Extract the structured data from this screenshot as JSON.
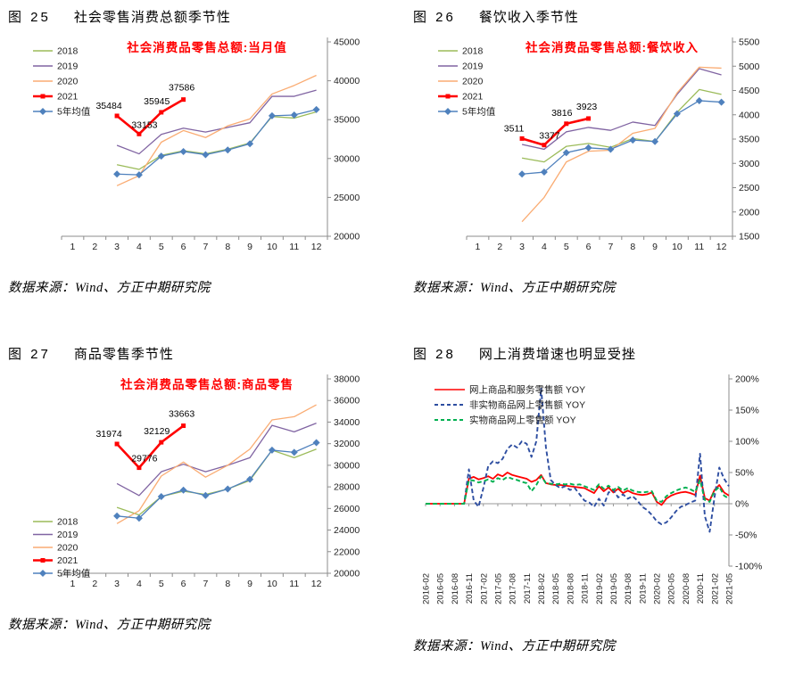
{
  "chart_data": [
    {
      "type": "line",
      "figure_label": "图 25",
      "title": "社会零售消费总额季节性",
      "inner_title": "社会消费品零售总额:当月值",
      "title_color": "#FF0000",
      "source": "数据来源：Wind、方正中期研究院",
      "x": [
        "1",
        "2",
        "3",
        "4",
        "5",
        "6",
        "7",
        "8",
        "9",
        "10",
        "11",
        "12"
      ],
      "ylim": [
        20000,
        45000
      ],
      "ytick_step": 5000,
      "legend_position": "top-left",
      "series": [
        {
          "name": "2018",
          "color": "#9BBB59",
          "values": [
            null,
            null,
            29200,
            28600,
            30400,
            31000,
            30600,
            31200,
            32000,
            35400,
            35200,
            36000
          ]
        },
        {
          "name": "2019",
          "color": "#8064A2",
          "values": [
            null,
            null,
            31700,
            30600,
            33100,
            33900,
            33400,
            34000,
            34600,
            38000,
            38000,
            38800
          ]
        },
        {
          "name": "2020",
          "color": "#FAAC73",
          "values": [
            null,
            null,
            26500,
            27800,
            32100,
            33600,
            32700,
            34200,
            35100,
            38300,
            39400,
            40700
          ]
        },
        {
          "name": "2021",
          "color": "#FF0000",
          "marker": "square",
          "values": [
            null,
            null,
            35484,
            33153,
            35945,
            37586,
            null,
            null,
            null,
            null,
            null,
            null
          ]
        },
        {
          "name": "5年均值",
          "color": "#4F81BD",
          "marker": "diamond",
          "values": [
            null,
            null,
            28000,
            27900,
            30300,
            30900,
            30500,
            31100,
            31900,
            35500,
            35600,
            36300
          ]
        }
      ],
      "point_labels": [
        {
          "series": "2021",
          "month": 3,
          "text": "35484"
        },
        {
          "series": "2021",
          "month": 4,
          "text": "33153"
        },
        {
          "series": "2021",
          "month": 5,
          "text": "35945"
        },
        {
          "series": "2021",
          "month": 6,
          "text": "37586"
        }
      ]
    },
    {
      "type": "line",
      "figure_label": "图 26",
      "title": "餐饮收入季节性",
      "inner_title": "社会消费品零售总额:餐饮收入",
      "title_color": "#FF0000",
      "source": "数据来源：Wind、方正中期研究院",
      "x": [
        "1",
        "2",
        "3",
        "4",
        "5",
        "6",
        "7",
        "8",
        "9",
        "10",
        "11",
        "12"
      ],
      "ylim": [
        1500,
        5500
      ],
      "ytick_step": 500,
      "legend_position": "top-left",
      "series": [
        {
          "name": "2018",
          "color": "#9BBB59",
          "values": [
            null,
            null,
            3110,
            3030,
            3350,
            3410,
            3330,
            3510,
            3450,
            4050,
            4520,
            4420
          ]
        },
        {
          "name": "2019",
          "color": "#8064A2",
          "values": [
            null,
            null,
            3390,
            3290,
            3650,
            3740,
            3680,
            3850,
            3780,
            4420,
            4950,
            4820
          ]
        },
        {
          "name": "2020",
          "color": "#FAAC73",
          "values": [
            null,
            null,
            1800,
            2300,
            3030,
            3250,
            3270,
            3620,
            3720,
            4450,
            4980,
            4960
          ]
        },
        {
          "name": "2021",
          "color": "#FF0000",
          "marker": "square",
          "values": [
            null,
            null,
            3511,
            3377,
            3816,
            3923,
            null,
            null,
            null,
            null,
            null,
            null
          ]
        },
        {
          "name": "5年均值",
          "color": "#4F81BD",
          "marker": "diamond",
          "values": [
            null,
            null,
            2780,
            2820,
            3220,
            3320,
            3290,
            3480,
            3450,
            4020,
            4290,
            4260
          ]
        }
      ],
      "point_labels": [
        {
          "series": "2021",
          "month": 3,
          "text": "3511"
        },
        {
          "series": "2021",
          "month": 4,
          "text": "3377"
        },
        {
          "series": "2021",
          "month": 5,
          "text": "3816"
        },
        {
          "series": "2021",
          "month": 6,
          "text": "3923"
        }
      ]
    },
    {
      "type": "line",
      "figure_label": "图 27",
      "title": "商品零售季节性",
      "inner_title": "社会消费品零售总额:商品零售",
      "title_color": "#FF0000",
      "source": "数据来源：Wind、方正中期研究院",
      "x": [
        "1",
        "2",
        "3",
        "4",
        "5",
        "6",
        "7",
        "8",
        "9",
        "10",
        "11",
        "12"
      ],
      "ylim": [
        20000,
        38000
      ],
      "ytick_step": 2000,
      "legend_position": "bottom-left",
      "series": [
        {
          "name": "2018",
          "color": "#9BBB59",
          "values": [
            null,
            null,
            26100,
            25400,
            27100,
            27600,
            27300,
            27800,
            28600,
            31400,
            30700,
            31500
          ]
        },
        {
          "name": "2019",
          "color": "#8064A2",
          "values": [
            null,
            null,
            28300,
            27200,
            29400,
            30100,
            29400,
            30000,
            30700,
            33700,
            33100,
            33900
          ]
        },
        {
          "name": "2020",
          "color": "#FAAC73",
          "values": [
            null,
            null,
            24600,
            25800,
            29000,
            30300,
            28900,
            30000,
            31500,
            34200,
            34500,
            35600
          ]
        },
        {
          "name": "2021",
          "color": "#FF0000",
          "marker": "square",
          "values": [
            null,
            null,
            31974,
            29776,
            32129,
            33663,
            null,
            null,
            null,
            null,
            null,
            null
          ]
        },
        {
          "name": "5年均值",
          "color": "#4F81BD",
          "marker": "diamond",
          "values": [
            null,
            null,
            25300,
            25100,
            27100,
            27700,
            27200,
            27800,
            28700,
            31400,
            31200,
            32100
          ]
        }
      ],
      "point_labels": [
        {
          "series": "2021",
          "month": 3,
          "text": "31974"
        },
        {
          "series": "2021",
          "month": 4,
          "text": "29776"
        },
        {
          "series": "2021",
          "month": 5,
          "text": "32129"
        },
        {
          "series": "2021",
          "month": 6,
          "text": "33663"
        }
      ]
    },
    {
      "type": "line",
      "figure_label": "图 28",
      "title": "网上消费增速也明显受挫",
      "source": "数据来源：Wind、方正中期研究院",
      "ylim": [
        -100,
        200
      ],
      "ytick_step": 50,
      "ytick_suffix": "%",
      "legend_position": "top-left",
      "x_tick_labels": [
        "2016-02",
        "2016-05",
        "2016-08",
        "2016-11",
        "2017-02",
        "2017-05",
        "2017-08",
        "2017-11",
        "2018-02",
        "2018-05",
        "2018-08",
        "2018-11",
        "2019-02",
        "2019-05",
        "2019-08",
        "2019-11",
        "2020-02",
        "2020-05",
        "2020-08",
        "2020-11",
        "2021-02",
        "2021-05"
      ],
      "x_monthly_range": [
        "2016-02",
        "2021-05"
      ],
      "series": [
        {
          "name": "网上商品和服务零售额 YOY",
          "color": "#FF0000",
          "line_style": "solid",
          "values": [
            0,
            0,
            0,
            0,
            0,
            0,
            0,
            0,
            0,
            40,
            43,
            39,
            41,
            44,
            40,
            47,
            44,
            50,
            46,
            44,
            42,
            40,
            35,
            38,
            46,
            33,
            31,
            30,
            30,
            29,
            28,
            27,
            26,
            25,
            21,
            17,
            28,
            20,
            26,
            18,
            24,
            17,
            21,
            17,
            15,
            14,
            15,
            18,
            3,
            -2,
            8,
            13,
            16,
            18,
            19,
            17,
            14,
            45,
            9,
            5,
            22,
            30,
            18,
            13
          ]
        },
        {
          "name": "非实物商品网上零售额 YOY",
          "color": "#2E4EA1",
          "line_style": "dashed",
          "values": [
            0,
            0,
            0,
            0,
            0,
            0,
            0,
            0,
            0,
            55,
            5,
            -5,
            25,
            60,
            68,
            65,
            72,
            88,
            95,
            90,
            100,
            96,
            75,
            100,
            185,
            90,
            38,
            30,
            25,
            28,
            22,
            25,
            15,
            5,
            2,
            -5,
            8,
            -3,
            18,
            22,
            10,
            15,
            8,
            12,
            5,
            -5,
            -10,
            -18,
            -28,
            -33,
            -30,
            -22,
            -12,
            -5,
            -2,
            2,
            5,
            80,
            -20,
            -45,
            10,
            58,
            40,
            28
          ]
        },
        {
          "name": "实物商品网上零售额 YOY",
          "color": "#00B050",
          "line_style": "dashed",
          "values": [
            0,
            0,
            0,
            0,
            0,
            0,
            0,
            0,
            0,
            38,
            37,
            34,
            36,
            39,
            35,
            41,
            38,
            43,
            40,
            38,
            35,
            33,
            20,
            30,
            44,
            33,
            32,
            31,
            32,
            31,
            32,
            30,
            31,
            28,
            25,
            22,
            31,
            24,
            29,
            22,
            27,
            21,
            25,
            21,
            19,
            18,
            19,
            20,
            5,
            3,
            12,
            17,
            21,
            24,
            26,
            23,
            19,
            38,
            6,
            3,
            20,
            27,
            13,
            8
          ]
        }
      ]
    }
  ]
}
